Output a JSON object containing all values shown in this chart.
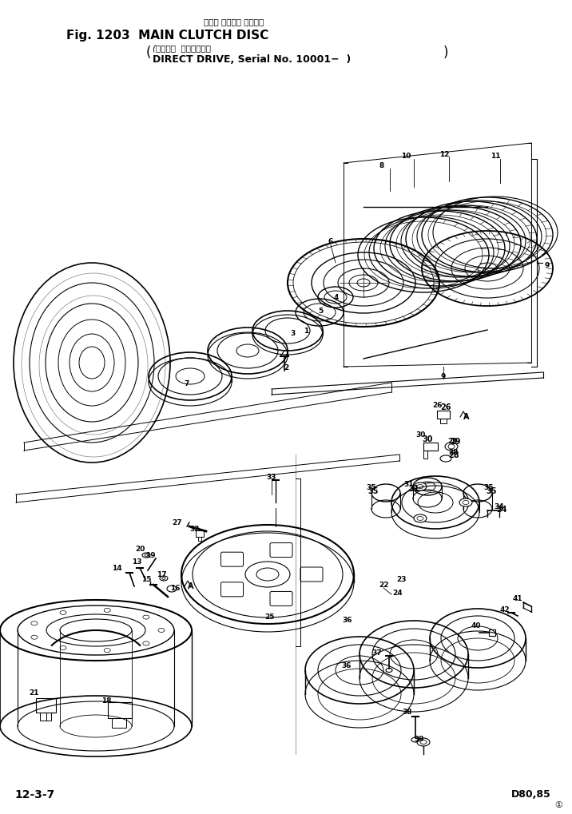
{
  "title_jp": "メイン クラッチ ディスク",
  "title_en": "Fig. 1203  MAIN CLUTCH DISC",
  "subtitle_jp": "(クラッチ  式・適用号機",
  "subtitle_en": "DIRECT DRIVE, Serial No. 10001−  )",
  "footer_left": "12-3-7",
  "footer_right": "D80,85",
  "bg_color": "#ffffff",
  "lc": "#000000"
}
